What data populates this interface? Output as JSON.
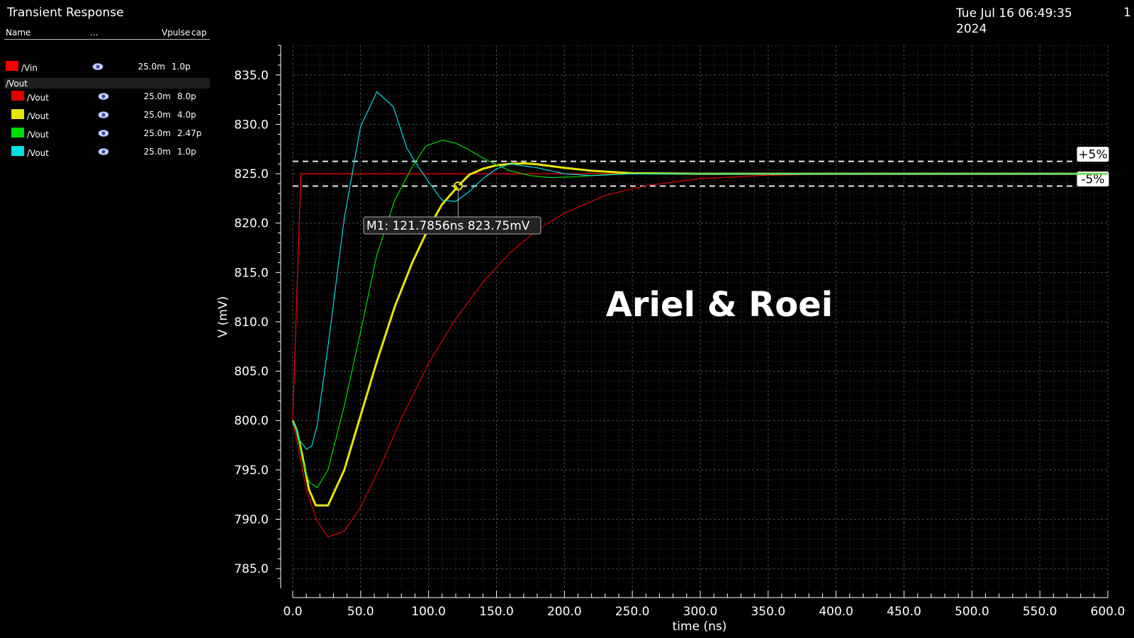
{
  "header": {
    "title": "Transient Response",
    "datetime_line1": "Tue Jul 16 06:49:35",
    "datetime_line2": "2024",
    "page": "1"
  },
  "legend": {
    "col_name": "Name",
    "col_dots": "...",
    "col_vpulse": "Vpulse",
    "col_cap": "cap",
    "group_label": "/Vout",
    "eye_icon": "eye-icon",
    "items": [
      {
        "name": "/Vin",
        "color": "#ff0000",
        "vpulse": "25.0m",
        "cap": "1.0p"
      },
      {
        "name": "/Vout",
        "color": "#e00000",
        "vpulse": "25.0m",
        "cap": "8.0p"
      },
      {
        "name": "/Vout",
        "color": "#e6e600",
        "vpulse": "25.0m",
        "cap": "4.0p"
      },
      {
        "name": "/Vout",
        "color": "#00dd00",
        "vpulse": "25.0m",
        "cap": "2.47p"
      },
      {
        "name": "/Vout",
        "color": "#00e0e0",
        "vpulse": "25.0m",
        "cap": "1.0p"
      }
    ]
  },
  "chart_data": {
    "type": "line",
    "title": "",
    "xlabel": "time (ns)",
    "ylabel": "V (mV)",
    "xlim": [
      0,
      600
    ],
    "ylim": [
      783,
      838
    ],
    "xticks": [
      "0.0",
      "50.0",
      "100.0",
      "150.0",
      "200.0",
      "250.0",
      "300.0",
      "350.0",
      "400.0",
      "450.0",
      "500.0",
      "550.0",
      "600.0"
    ],
    "yticks": [
      "785.0",
      "790.0",
      "795.0",
      "800.0",
      "805.0",
      "810.0",
      "815.0",
      "820.0",
      "825.0",
      "830.0",
      "835.0"
    ],
    "grid": true,
    "watermark": "Ariel & Roei",
    "series": [
      {
        "name": "/Vin",
        "color": "#ff0000",
        "x": [
          0,
          6,
          600
        ],
        "y": [
          800.0,
          825.0,
          825.0
        ]
      },
      {
        "name": "/Vout",
        "color": "#e00000",
        "x": [
          0,
          5,
          10,
          18,
          26,
          38,
          50,
          65,
          80,
          100,
          120,
          140,
          160,
          180,
          200,
          230,
          260,
          300,
          350,
          400,
          450,
          600
        ],
        "y": [
          800.0,
          796.5,
          793.0,
          789.8,
          788.2,
          788.8,
          791.2,
          795.5,
          800.2,
          805.8,
          810.3,
          814.0,
          817.0,
          819.3,
          821.0,
          822.8,
          823.8,
          824.5,
          824.85,
          825.0,
          825.0,
          825.0
        ]
      },
      {
        "name": "/Vout",
        "color": "#e6e600",
        "x": [
          0,
          3,
          7,
          12,
          17,
          26,
          38,
          50,
          62,
          75,
          88,
          100,
          110,
          121.79,
          130,
          140,
          150,
          160,
          170,
          180,
          200,
          220,
          250,
          300,
          350,
          400,
          600
        ],
        "y": [
          800.0,
          799.0,
          796.5,
          793.0,
          791.4,
          791.4,
          795.0,
          800.5,
          806.0,
          811.5,
          816.0,
          819.5,
          821.9,
          823.75,
          824.9,
          825.5,
          825.85,
          826.0,
          826.05,
          825.95,
          825.6,
          825.3,
          825.05,
          825.0,
          825.0,
          825.0,
          825.0
        ]
      },
      {
        "name": "/Vout",
        "color": "#00dd00",
        "x": [
          0,
          3,
          7,
          12,
          18,
          26,
          38,
          50,
          62,
          75,
          88,
          98,
          110,
          120,
          130,
          140,
          150,
          160,
          175,
          190,
          210,
          230,
          250,
          300,
          400,
          600
        ],
        "y": [
          800.0,
          799.0,
          796.0,
          793.8,
          793.2,
          795.0,
          801.5,
          809.0,
          816.8,
          822.3,
          825.7,
          827.8,
          828.4,
          828.1,
          827.4,
          826.6,
          825.9,
          825.3,
          824.8,
          824.6,
          824.7,
          824.9,
          825.0,
          825.0,
          825.0,
          825.0
        ]
      },
      {
        "name": "/Vout",
        "color": "#00e0e0",
        "x": [
          0,
          5,
          10,
          14,
          18,
          26,
          38,
          50,
          62,
          74,
          84,
          92,
          100,
          110,
          120,
          130,
          140,
          150,
          160,
          180,
          200,
          220,
          250,
          300,
          600
        ],
        "y": [
          800.0,
          798.0,
          797.1,
          797.4,
          799.5,
          807.5,
          820.5,
          829.8,
          833.3,
          831.8,
          827.6,
          825.8,
          824.2,
          822.3,
          822.2,
          823.2,
          824.5,
          825.5,
          826.0,
          825.6,
          825.0,
          824.8,
          825.0,
          825.0,
          825.0
        ]
      }
    ],
    "reference_lines": [
      {
        "label": "+5%",
        "y": 826.25
      },
      {
        "label": "-5%",
        "y": 823.75
      }
    ],
    "marker": {
      "label": "M1: 121.7856ns 823.75mV",
      "x": 121.7856,
      "y": 823.75,
      "color": "#e6e600"
    }
  }
}
